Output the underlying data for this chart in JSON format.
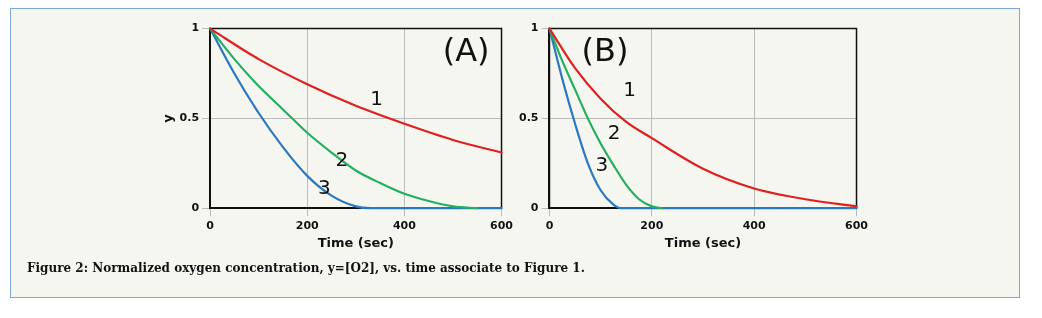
{
  "chart_data": [
    {
      "type": "line",
      "xlabel": "Time (sec)",
      "ylabel": "y",
      "xlim": [
        0,
        600
      ],
      "xticks": [
        0,
        200,
        400,
        600
      ],
      "ylim": [
        0,
        1
      ],
      "yticks": [
        0,
        0.5,
        1
      ],
      "grid": true,
      "legend": false,
      "marker": "none",
      "line_style": "solid",
      "annotations": [
        "(A)",
        "Figure 2: Normalized oxygen concentration, y=[O2], vs. time associate to Figure 1."
      ],
      "series": [
        {
          "name": "1",
          "color": "#e02020",
          "x": [
            0,
            100,
            200,
            300,
            400,
            500,
            600
          ],
          "values": [
            1,
            0.83,
            0.69,
            0.57,
            0.47,
            0.38,
            0.31
          ]
        },
        {
          "name": "2",
          "color": "#22b060",
          "x": [
            0,
            50,
            100,
            150,
            200,
            250,
            300,
            350,
            400,
            450,
            500,
            550
          ],
          "values": [
            1,
            0.83,
            0.68,
            0.55,
            0.42,
            0.31,
            0.21,
            0.14,
            0.08,
            0.04,
            0.01,
            0
          ]
        },
        {
          "name": "3",
          "color": "#2a78c0",
          "x": [
            0,
            50,
            100,
            150,
            200,
            250,
            300,
            330,
            600
          ],
          "values": [
            1,
            0.75,
            0.53,
            0.34,
            0.18,
            0.07,
            0.01,
            0,
            0
          ]
        }
      ]
    },
    {
      "type": "line",
      "xlabel": "Time (sec)",
      "xlim": [
        0,
        600
      ],
      "xticks": [
        0,
        200,
        400,
        600
      ],
      "ylim": [
        0,
        1
      ],
      "yticks": [
        0,
        0.5,
        1
      ],
      "grid": true,
      "legend": false,
      "marker": "none",
      "line_style": "solid",
      "annotations": [
        "(B)"
      ],
      "series": [
        {
          "name": "1",
          "color": "#e02020",
          "x": [
            0,
            50,
            100,
            150,
            200,
            300,
            400,
            500,
            600
          ],
          "values": [
            1,
            0.78,
            0.61,
            0.48,
            0.39,
            0.22,
            0.11,
            0.05,
            0.01
          ]
        },
        {
          "name": "2",
          "color": "#22b060",
          "x": [
            0,
            25,
            50,
            75,
            100,
            125,
            150,
            175,
            200,
            220
          ],
          "values": [
            1,
            0.82,
            0.66,
            0.5,
            0.36,
            0.24,
            0.13,
            0.05,
            0.01,
            0
          ]
        },
        {
          "name": "3",
          "color": "#2a78c0",
          "x": [
            0,
            25,
            50,
            75,
            100,
            125,
            140,
            600
          ],
          "values": [
            1,
            0.72,
            0.47,
            0.25,
            0.1,
            0.02,
            0,
            0
          ]
        }
      ]
    }
  ]
}
